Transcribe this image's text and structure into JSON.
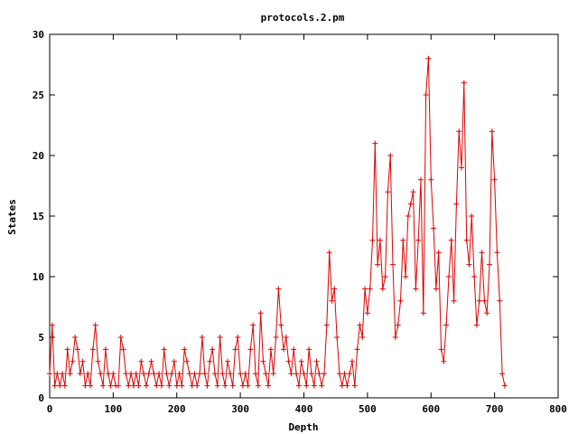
{
  "chart_data": {
    "type": "line",
    "title": "protocols.2.pm",
    "xlabel": "Depth",
    "ylabel": "States",
    "xlim": [
      0,
      800
    ],
    "ylim": [
      0,
      30
    ],
    "xticks": [
      "0",
      "100",
      "200",
      "300",
      "400",
      "500",
      "600",
      "700",
      "800"
    ],
    "yticks": [
      "0",
      "5",
      "10",
      "15",
      "20",
      "25",
      "30"
    ],
    "grid": false,
    "legend": "none",
    "marker": "plus",
    "color": "#dd0000",
    "series": [
      {
        "x": [
          0,
          4,
          8,
          12,
          16,
          20,
          24,
          28,
          32,
          36,
          40,
          44,
          48,
          52,
          56,
          60,
          64,
          68,
          72,
          76,
          80,
          84,
          88,
          92,
          96,
          100,
          104,
          108,
          112,
          116,
          120,
          124,
          128,
          132,
          136,
          140,
          144,
          148,
          152,
          156,
          160,
          164,
          168,
          172,
          176,
          180,
          184,
          188,
          192,
          196,
          200,
          204,
          208,
          212,
          216,
          220,
          224,
          228,
          232,
          236,
          240,
          244,
          248,
          252,
          256,
          260,
          264,
          268,
          272,
          276,
          280,
          284,
          288,
          292,
          296,
          300,
          304,
          308,
          312,
          316,
          320,
          324,
          328,
          332,
          336,
          340,
          344,
          348,
          352,
          356,
          360,
          364,
          368,
          372,
          376,
          380,
          384,
          388,
          392,
          396,
          400,
          404,
          408,
          412,
          416,
          420,
          424,
          428,
          432,
          436,
          440,
          444,
          448,
          452,
          456,
          460,
          464,
          468,
          472,
          476,
          480,
          484,
          488,
          492,
          496,
          500,
          504,
          508,
          512,
          516,
          520,
          524,
          528,
          532,
          536,
          540,
          544,
          548,
          552,
          556,
          560,
          564,
          568,
          572,
          576,
          580,
          584,
          588,
          592,
          596,
          600,
          604,
          608,
          612,
          616,
          620,
          624,
          628,
          632,
          636,
          640,
          644,
          648,
          652,
          656,
          660,
          664,
          668,
          672,
          676,
          680,
          684,
          688,
          692,
          696,
          700,
          704,
          708,
          712,
          716
        ],
        "y": [
          2,
          6,
          1,
          2,
          1,
          2,
          1,
          4,
          2,
          3,
          5,
          4,
          2,
          3,
          1,
          2,
          1,
          4,
          6,
          3,
          2,
          1,
          4,
          2,
          1,
          2,
          1,
          1,
          5,
          4,
          2,
          1,
          2,
          1,
          2,
          1,
          3,
          2,
          1,
          2,
          3,
          2,
          1,
          2,
          1,
          4,
          2,
          1,
          2,
          3,
          1,
          2,
          1,
          4,
          3,
          2,
          1,
          2,
          1,
          2,
          5,
          2,
          1,
          3,
          4,
          2,
          1,
          5,
          2,
          1,
          3,
          2,
          1,
          4,
          5,
          2,
          1,
          2,
          1,
          4,
          6,
          2,
          1,
          7,
          3,
          2,
          1,
          4,
          2,
          5,
          9,
          6,
          4,
          5,
          3,
          2,
          4,
          2,
          1,
          3,
          2,
          1,
          4,
          2,
          1,
          3,
          2,
          1,
          2,
          6,
          12,
          8,
          9,
          5,
          2,
          1,
          2,
          1,
          2,
          3,
          1,
          4,
          6,
          5,
          9,
          7,
          9,
          13,
          21,
          11,
          13,
          9,
          10,
          17,
          20,
          11,
          5,
          6,
          8,
          13,
          10,
          15,
          16,
          17,
          9,
          13,
          18,
          7,
          25,
          28,
          18,
          14,
          9,
          12,
          4,
          3,
          6,
          10,
          13,
          8,
          16,
          22,
          19,
          26,
          13,
          11,
          15,
          10,
          6,
          8,
          12,
          8,
          7,
          11,
          22,
          18,
          12,
          8,
          2,
          1
        ]
      }
    ]
  }
}
